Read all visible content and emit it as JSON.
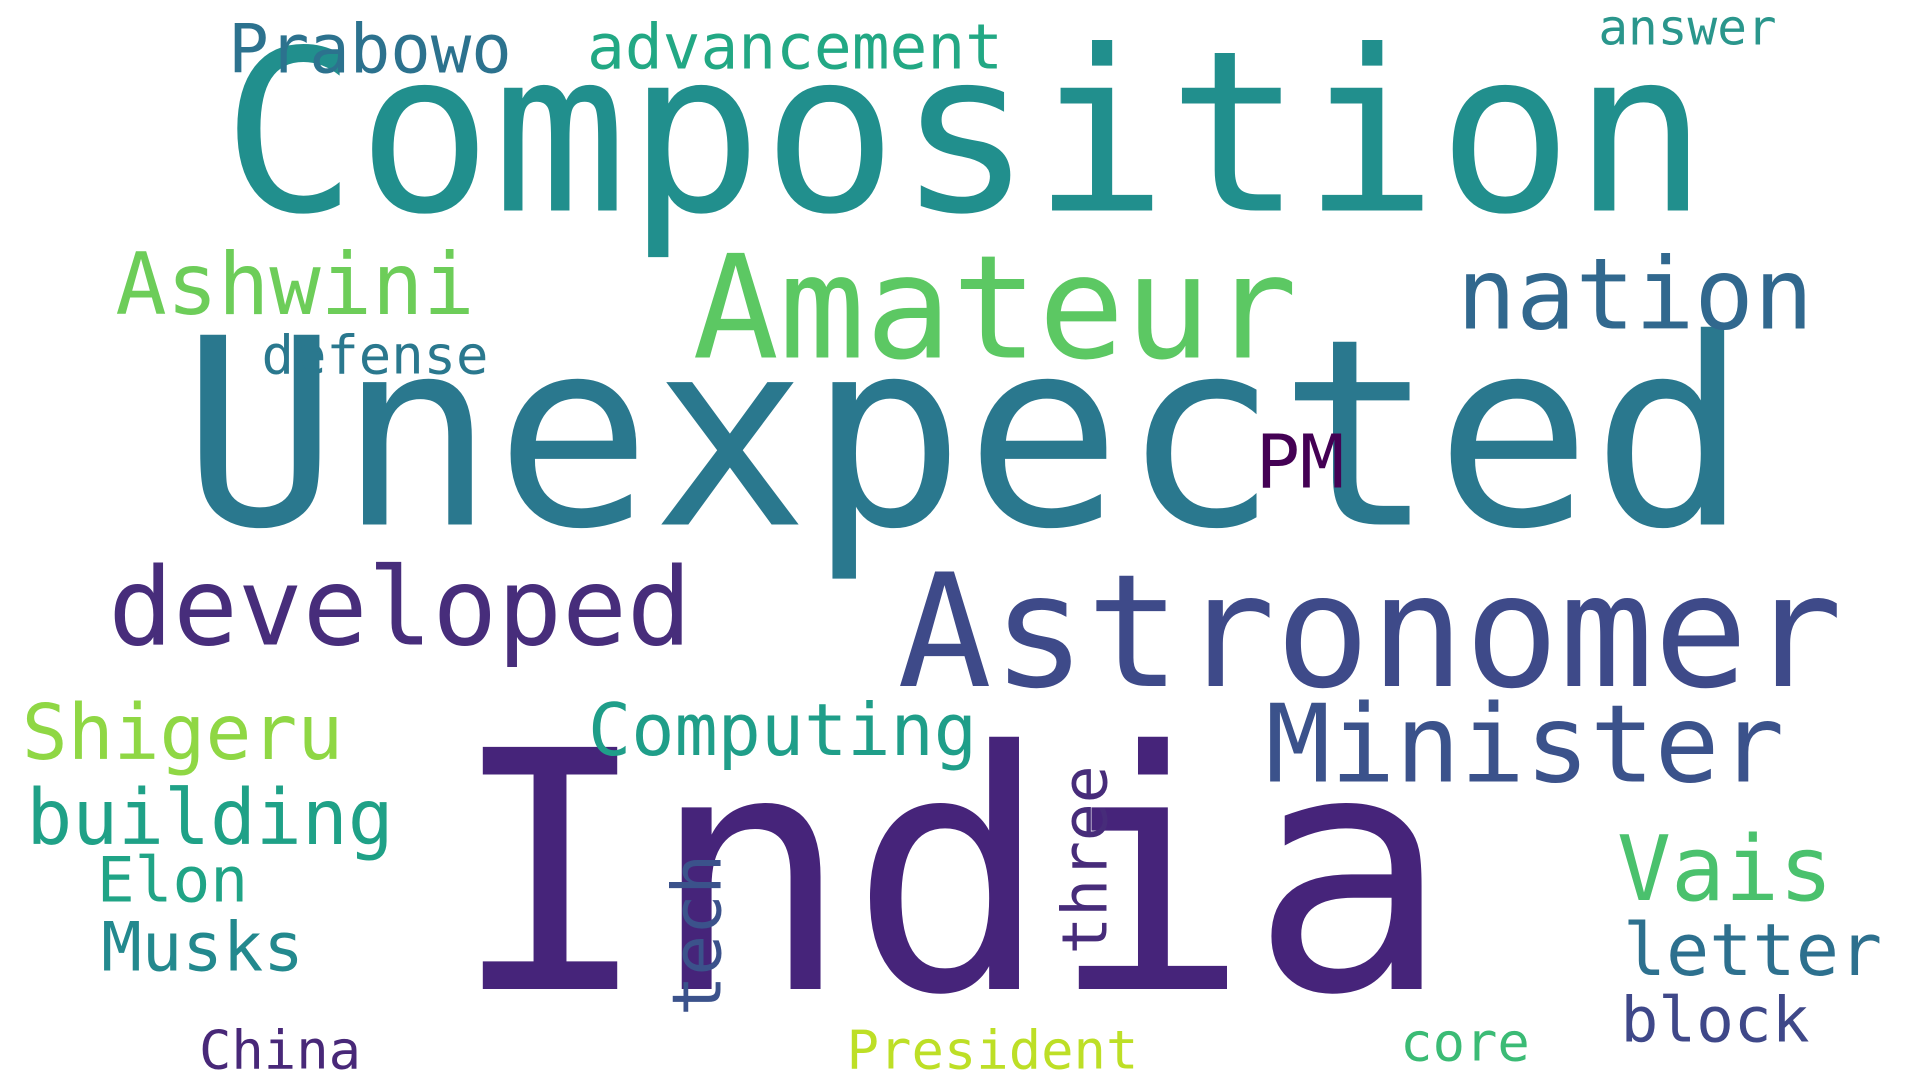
{
  "words": [
    {
      "key": "composition",
      "text": "Composition",
      "color": "#218F8D"
    },
    {
      "key": "unexpected",
      "text": "Unexpected",
      "color": "#2A788E"
    },
    {
      "key": "india",
      "text": "India",
      "color": "#46247A"
    },
    {
      "key": "astronomer",
      "text": "Astronomer",
      "color": "#3E4A89"
    },
    {
      "key": "amateur",
      "text": "Amateur",
      "color": "#5CC863"
    },
    {
      "key": "developed",
      "text": "developed",
      "color": "#472D7B"
    },
    {
      "key": "nation",
      "text": "nation",
      "color": "#31688E"
    },
    {
      "key": "minister",
      "text": "Minister",
      "color": "#3B528B"
    },
    {
      "key": "ashwini",
      "text": "Ashwini",
      "color": "#6DCD59"
    },
    {
      "key": "prabowo",
      "text": "Prabowo",
      "color": "#2C728E"
    },
    {
      "key": "advancement",
      "text": "advancement",
      "color": "#22A884"
    },
    {
      "key": "answer",
      "text": "answer",
      "color": "#2A968C"
    },
    {
      "key": "defense",
      "text": "defense",
      "color": "#2A788E"
    },
    {
      "key": "pm",
      "text": "PM",
      "color": "#440154"
    },
    {
      "key": "computing",
      "text": "Computing",
      "color": "#1F9E89"
    },
    {
      "key": "shigeru",
      "text": "Shigeru",
      "color": "#8FD744"
    },
    {
      "key": "building",
      "text": "building",
      "color": "#1FA187"
    },
    {
      "key": "elon",
      "text": "Elon",
      "color": "#20A486"
    },
    {
      "key": "musks",
      "text": "Musks",
      "color": "#23898E"
    },
    {
      "key": "tech",
      "text": "tech",
      "color": "#3B528B"
    },
    {
      "key": "three",
      "text": "three",
      "color": "#472C7A"
    },
    {
      "key": "vais",
      "text": "Vais",
      "color": "#4AC16D"
    },
    {
      "key": "letter",
      "text": "letter",
      "color": "#2D708E"
    },
    {
      "key": "block",
      "text": "block",
      "color": "#3F4889"
    },
    {
      "key": "core",
      "text": "core",
      "color": "#3BBB75"
    },
    {
      "key": "china",
      "text": "China",
      "color": "#482878"
    },
    {
      "key": "president",
      "text": "President",
      "color": "#BDDF26"
    }
  ]
}
